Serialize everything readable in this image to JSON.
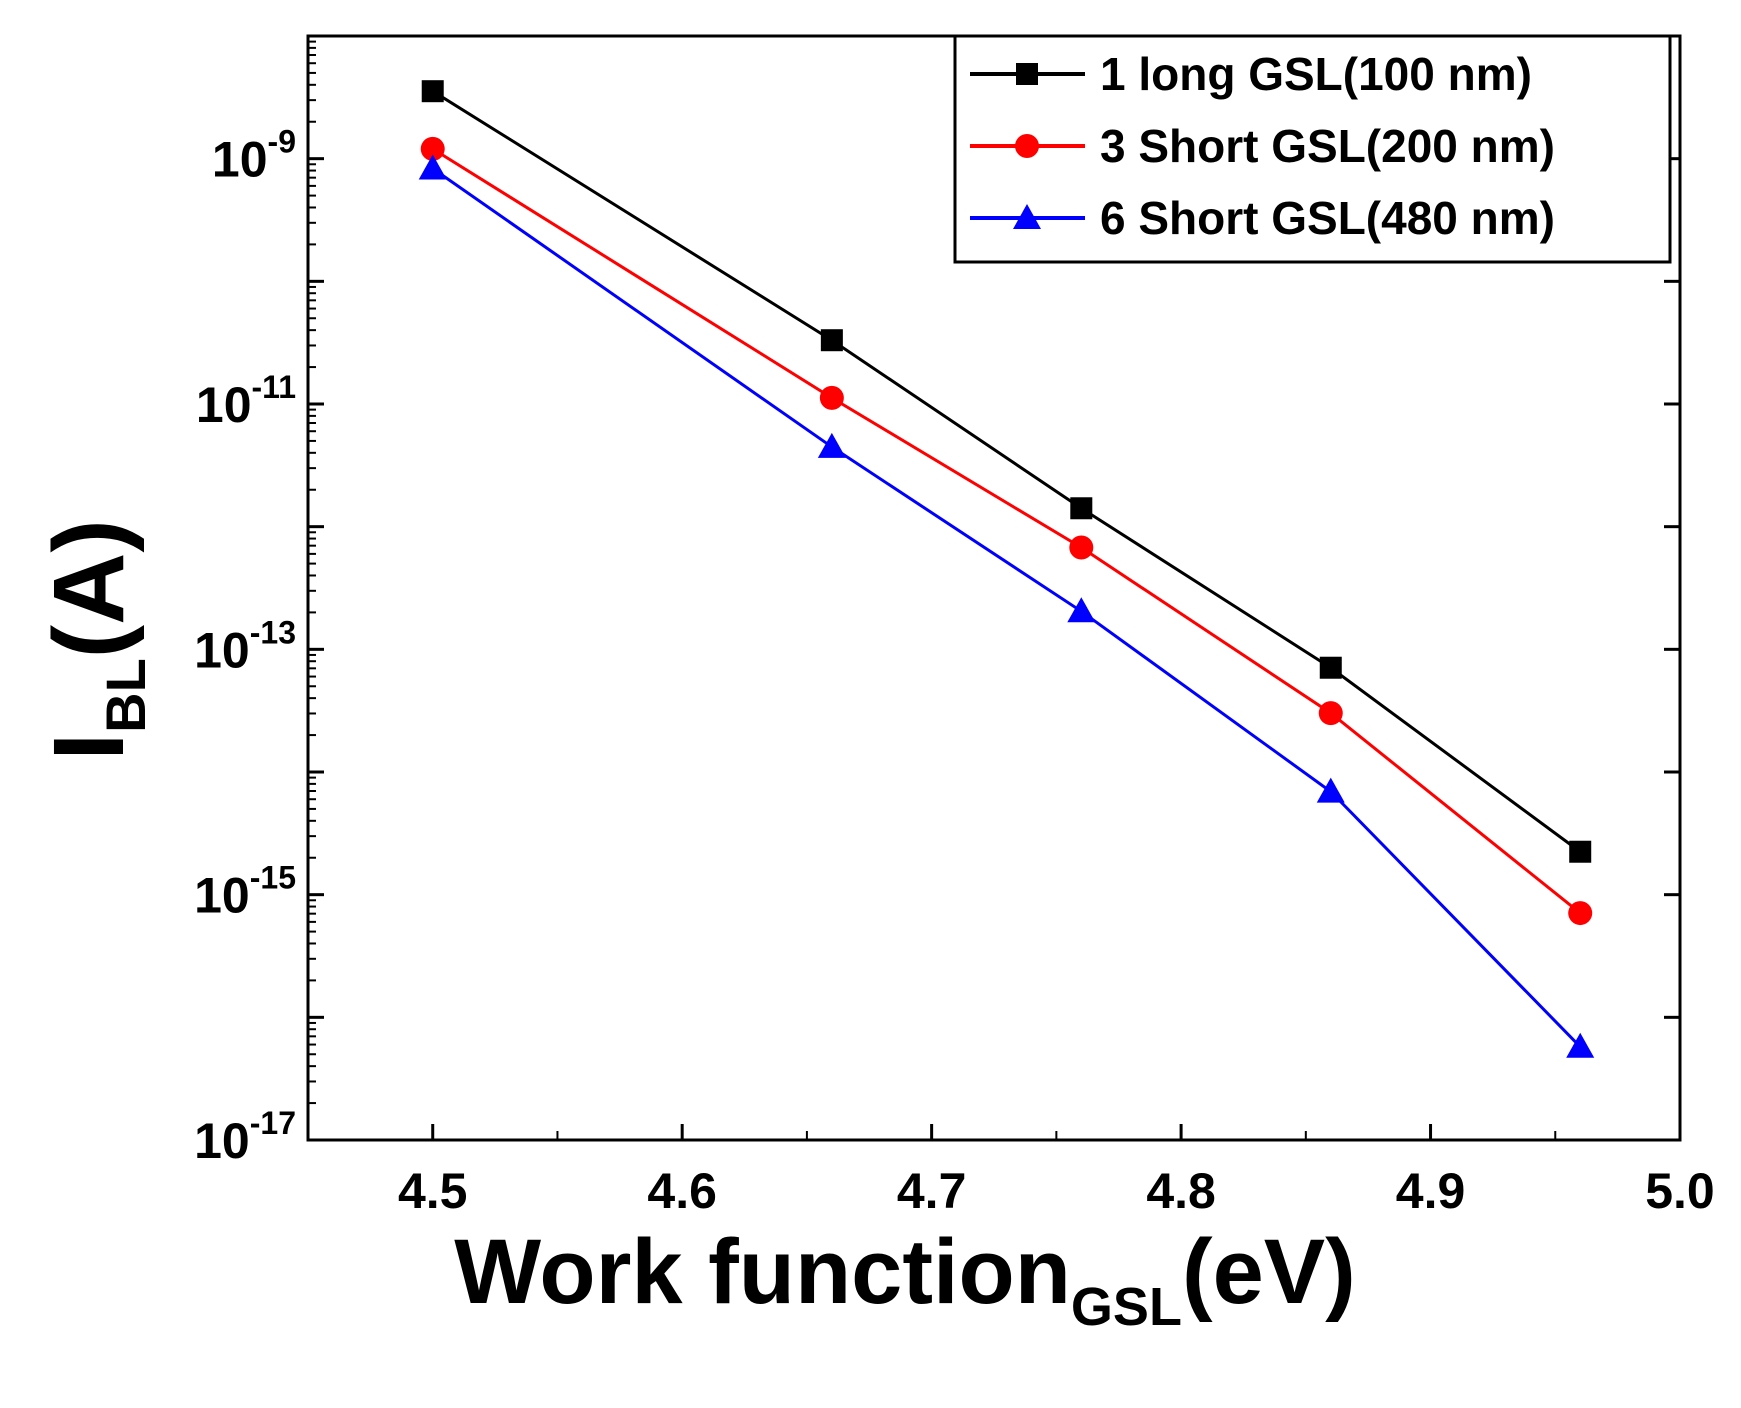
{
  "chart_data": {
    "type": "line",
    "title": "",
    "xlabel": "Work function",
    "xlabel_sub": "GSL",
    "xlabel_unit": "(eV)",
    "ylabel": "I",
    "ylabel_sub": "BL",
    "ylabel_unit": "(A)",
    "yscale": "log",
    "xlim": [
      4.45,
      5.0
    ],
    "ylim_exp": [
      -17,
      -8
    ],
    "x_ticks": [
      "4.5",
      "4.6",
      "4.7",
      "4.8",
      "4.9",
      "5.0"
    ],
    "x_tick_values": [
      4.5,
      4.6,
      4.7,
      4.8,
      4.9,
      5.0
    ],
    "y_ticks": [
      {
        "exp": -9,
        "base": "10",
        "sup": "-9"
      },
      {
        "exp": -11,
        "base": "10",
        "sup": "-11"
      },
      {
        "exp": -13,
        "base": "10",
        "sup": "-13"
      },
      {
        "exp": -15,
        "base": "10",
        "sup": "-15"
      },
      {
        "exp": -17,
        "base": "10",
        "sup": "-17"
      }
    ],
    "x": [
      4.5,
      4.66,
      4.76,
      4.86,
      4.96
    ],
    "legend_position": "top-right",
    "series": [
      {
        "name": "1 long GSL(100 nm)",
        "color": "#000000",
        "marker": "square",
        "log10_values": [
          -8.45,
          -10.48,
          -11.85,
          -13.15,
          -14.65
        ]
      },
      {
        "name": "3 Short GSL(200 nm)",
        "color": "#ff0000",
        "marker": "circle",
        "log10_values": [
          -8.92,
          -10.95,
          -12.17,
          -13.52,
          -15.15
        ]
      },
      {
        "name": "6 Short GSL(480 nm)",
        "color": "#0000ff",
        "marker": "triangle",
        "log10_values": [
          -9.08,
          -11.35,
          -12.69,
          -14.16,
          -16.24
        ]
      }
    ]
  }
}
